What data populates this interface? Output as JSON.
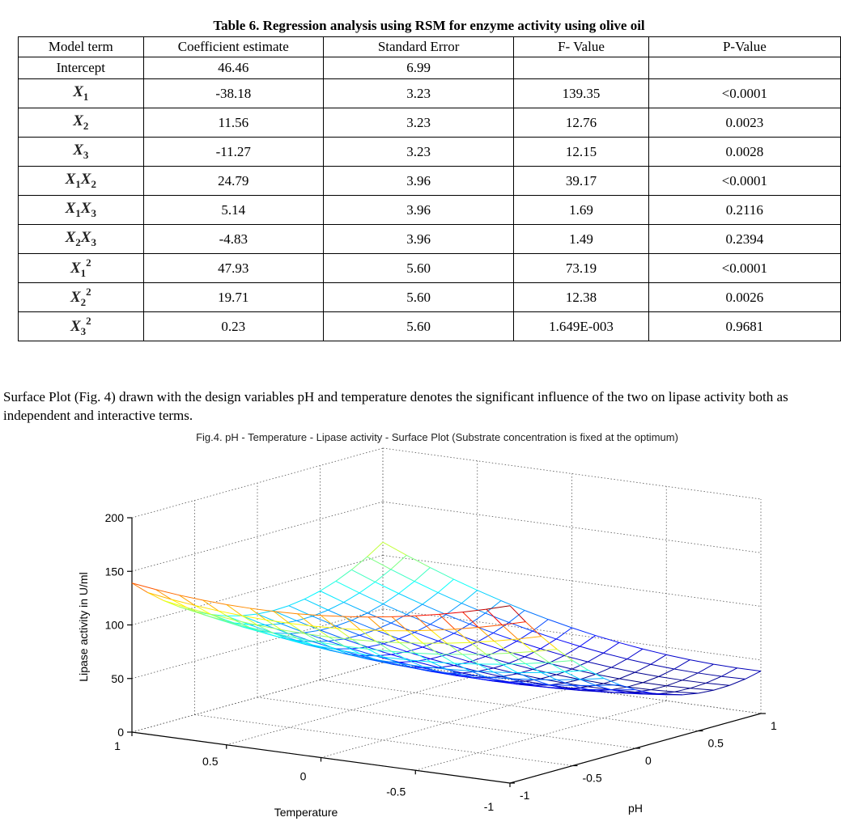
{
  "table": {
    "title": "Table 6.   Regression analysis using RSM  for enzyme activity using olive oil",
    "headers": [
      "Model term",
      "Coefficient estimate",
      "Standard Error",
      "F- Value",
      "P-Value"
    ],
    "rows": [
      {
        "term": {
          "text": "Intercept"
        },
        "coef": "46.46",
        "se": "6.99",
        "f": "",
        "p": ""
      },
      {
        "term": {
          "vars": [
            [
              "X",
              "1"
            ]
          ],
          "sup": ""
        },
        "coef": "-38.18",
        "se": "3.23",
        "f": "139.35",
        "p": "<0.0001"
      },
      {
        "term": {
          "vars": [
            [
              "X",
              "2"
            ]
          ],
          "sup": ""
        },
        "coef": "11.56",
        "se": "3.23",
        "f": "12.76",
        "p": "0.0023"
      },
      {
        "term": {
          "vars": [
            [
              "X",
              "3"
            ]
          ],
          "sup": ""
        },
        "coef": "-11.27",
        "se": "3.23",
        "f": "12.15",
        "p": "0.0028"
      },
      {
        "term": {
          "vars": [
            [
              "X",
              "1"
            ],
            [
              "X",
              "2"
            ]
          ],
          "sup": ""
        },
        "coef": "24.79",
        "se": "3.96",
        "f": "39.17",
        "p": "<0.0001"
      },
      {
        "term": {
          "vars": [
            [
              "X",
              "1"
            ],
            [
              "X",
              "3"
            ]
          ],
          "sup": ""
        },
        "coef": "5.14",
        "se": "3.96",
        "f": "1.69",
        "p": "0.2116"
      },
      {
        "term": {
          "vars": [
            [
              "X",
              "2"
            ],
            [
              "X",
              "3"
            ]
          ],
          "sup": ""
        },
        "coef": "-4.83",
        "se": "3.96",
        "f": "1.49",
        "p": "0.2394"
      },
      {
        "term": {
          "vars": [
            [
              "X",
              "1"
            ]
          ],
          "sup": "2"
        },
        "coef": "47.93",
        "se": "5.60",
        "f": "73.19",
        "p": "<0.0001"
      },
      {
        "term": {
          "vars": [
            [
              "X",
              "2"
            ]
          ],
          "sup": "2"
        },
        "coef": "19.71",
        "se": "5.60",
        "f": "12.38",
        "p": "0.0026"
      },
      {
        "term": {
          "vars": [
            [
              "X",
              "3"
            ]
          ],
          "sup": "2"
        },
        "coef": "0.23",
        "se": "5.60",
        "f": "1.649E-003",
        "p": "0.9681"
      }
    ]
  },
  "paragraph": "Surface Plot (Fig. 4) drawn with the design variables pH and temperature denotes the significant influence of the two on lipase activity both as independent and interactive terms.",
  "chart_data": {
    "type": "surface",
    "title": "Fig.4. pH - Temperature - Lipase activity - Surface Plot (Substrate concentration is fixed at the optimum)",
    "xlabel": "Temperature",
    "ylabel": "pH",
    "zlabel": "Lipase activity in U/ml",
    "xlim": [
      -1,
      1
    ],
    "ylim": [
      -1,
      1
    ],
    "zlim": [
      0,
      200
    ],
    "x_ticks": [
      "1",
      "0.5",
      "0",
      "-0.5",
      "-1"
    ],
    "y_ticks": [
      "-1",
      "-0.5",
      "0",
      "0.5",
      "1"
    ],
    "z_ticks": [
      "0",
      "50",
      "100",
      "150",
      "200"
    ],
    "grid": true,
    "colormap": "jet",
    "model": {
      "intercept": 46.46,
      "pH": -38.18,
      "temperature": 11.56,
      "pH_temperature": 24.79,
      "pH2": 47.93,
      "temperature2": 19.71
    }
  }
}
